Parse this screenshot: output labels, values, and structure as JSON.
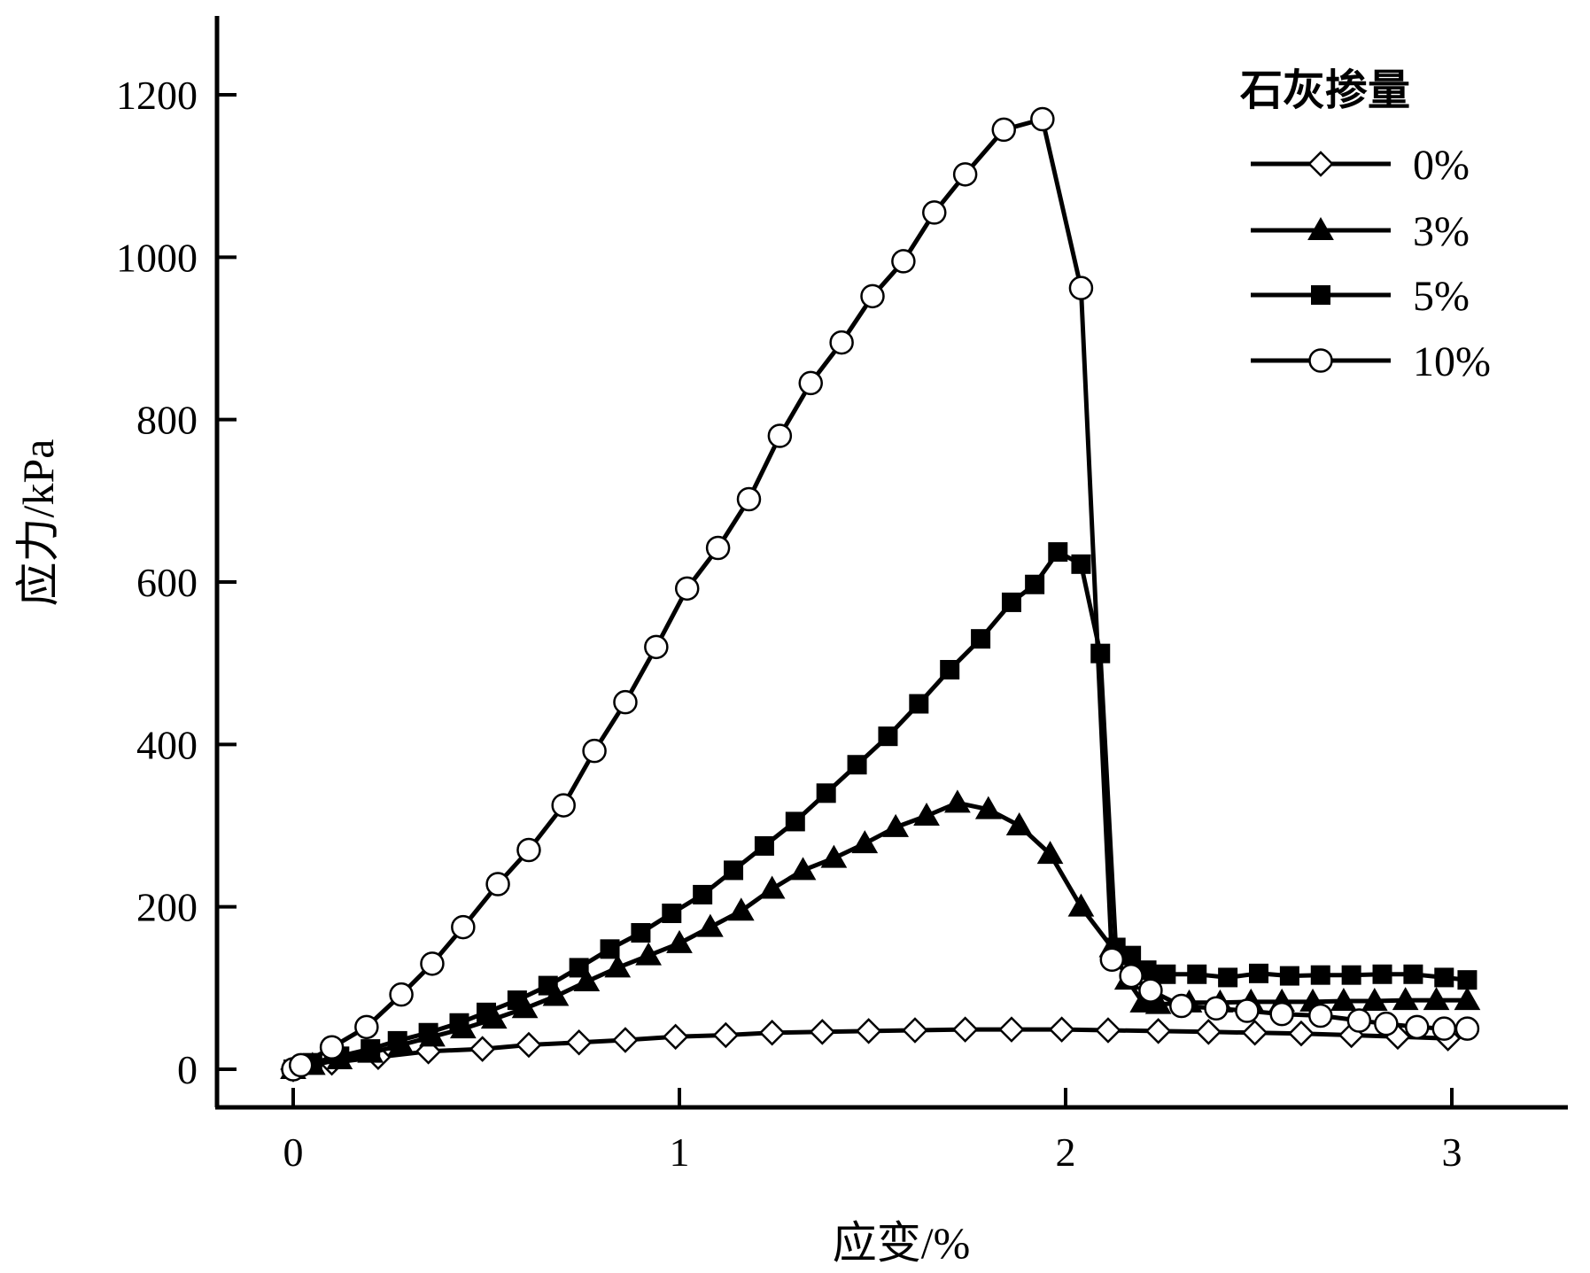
{
  "chart_data": {
    "type": "line",
    "xlabel": "应变/%",
    "ylabel": "应力/kPa",
    "xlim": [
      -0.2,
      3.3
    ],
    "ylim": [
      -50,
      1300
    ],
    "xticks": [
      0,
      1,
      2,
      3
    ],
    "yticks": [
      0,
      200,
      400,
      600,
      800,
      1000,
      1200
    ],
    "grid": false,
    "legend": {
      "title": "石灰掺量",
      "placement": "top-right",
      "entries": [
        "0%",
        "3%",
        "5%",
        "10%"
      ]
    },
    "series": [
      {
        "name": "0%",
        "marker": "diamond-open",
        "x": [
          0,
          0.1,
          0.22,
          0.35,
          0.49,
          0.61,
          0.74,
          0.86,
          0.99,
          1.12,
          1.24,
          1.37,
          1.49,
          1.61,
          1.74,
          1.86,
          1.99,
          2.11,
          2.24,
          2.37,
          2.49,
          2.61,
          2.74,
          2.86,
          2.99
        ],
        "y": [
          0,
          8,
          15,
          22,
          25,
          30,
          33,
          36,
          40,
          42,
          45,
          46,
          47,
          48,
          49,
          49,
          49,
          48,
          47,
          46,
          45,
          44,
          42,
          40,
          38
        ]
      },
      {
        "name": "3%",
        "marker": "triangle-filled",
        "x": [
          0,
          0.05,
          0.12,
          0.2,
          0.28,
          0.36,
          0.44,
          0.52,
          0.6,
          0.68,
          0.76,
          0.84,
          0.92,
          1.0,
          1.08,
          1.16,
          1.24,
          1.32,
          1.4,
          1.48,
          1.56,
          1.64,
          1.72,
          1.8,
          1.88,
          1.96,
          2.04,
          2.12,
          2.16,
          2.2,
          2.24,
          2.32,
          2.4,
          2.48,
          2.56,
          2.64,
          2.72,
          2.8,
          2.88,
          2.96,
          3.04
        ],
        "y": [
          0,
          5,
          12,
          20,
          30,
          40,
          50,
          62,
          75,
          90,
          108,
          125,
          140,
          155,
          175,
          195,
          222,
          245,
          260,
          278,
          298,
          312,
          328,
          320,
          300,
          265,
          200,
          150,
          110,
          82,
          80,
          82,
          82,
          83,
          83,
          83,
          84,
          84,
          85,
          85,
          85
        ]
      },
      {
        "name": "5%",
        "marker": "square-filled",
        "x": [
          0,
          0.05,
          0.12,
          0.2,
          0.27,
          0.35,
          0.43,
          0.5,
          0.58,
          0.66,
          0.74,
          0.82,
          0.9,
          0.98,
          1.06,
          1.14,
          1.22,
          1.3,
          1.38,
          1.46,
          1.54,
          1.62,
          1.7,
          1.78,
          1.86,
          1.92,
          1.98,
          2.04,
          2.09,
          2.13,
          2.17,
          2.21,
          2.26,
          2.34,
          2.42,
          2.5,
          2.58,
          2.66,
          2.74,
          2.82,
          2.9,
          2.98,
          3.04
        ],
        "y": [
          0,
          8,
          16,
          25,
          35,
          45,
          57,
          70,
          85,
          103,
          125,
          148,
          168,
          192,
          215,
          245,
          275,
          305,
          340,
          375,
          410,
          450,
          492,
          530,
          575,
          597,
          637,
          622,
          512,
          150,
          140,
          122,
          117,
          117,
          113,
          118,
          115,
          116,
          116,
          117,
          117,
          113,
          110
        ]
      },
      {
        "name": "10%",
        "marker": "circle-open",
        "x": [
          0,
          0.02,
          0.1,
          0.19,
          0.28,
          0.36,
          0.44,
          0.53,
          0.61,
          0.7,
          0.78,
          0.86,
          0.94,
          1.02,
          1.1,
          1.18,
          1.26,
          1.34,
          1.42,
          1.5,
          1.58,
          1.66,
          1.74,
          1.84,
          1.94,
          2.04,
          2.12,
          2.17,
          2.22,
          2.3,
          2.39,
          2.47,
          2.56,
          2.66,
          2.76,
          2.83,
          2.91,
          2.98,
          3.04
        ],
        "y": [
          0,
          5,
          27,
          52,
          92,
          130,
          175,
          228,
          270,
          325,
          392,
          452,
          520,
          592,
          642,
          702,
          780,
          845,
          895,
          952,
          995,
          1055,
          1102,
          1157,
          1170,
          962,
          135,
          115,
          97,
          78,
          75,
          72,
          68,
          66,
          60,
          56,
          52,
          50,
          50
        ]
      }
    ]
  }
}
